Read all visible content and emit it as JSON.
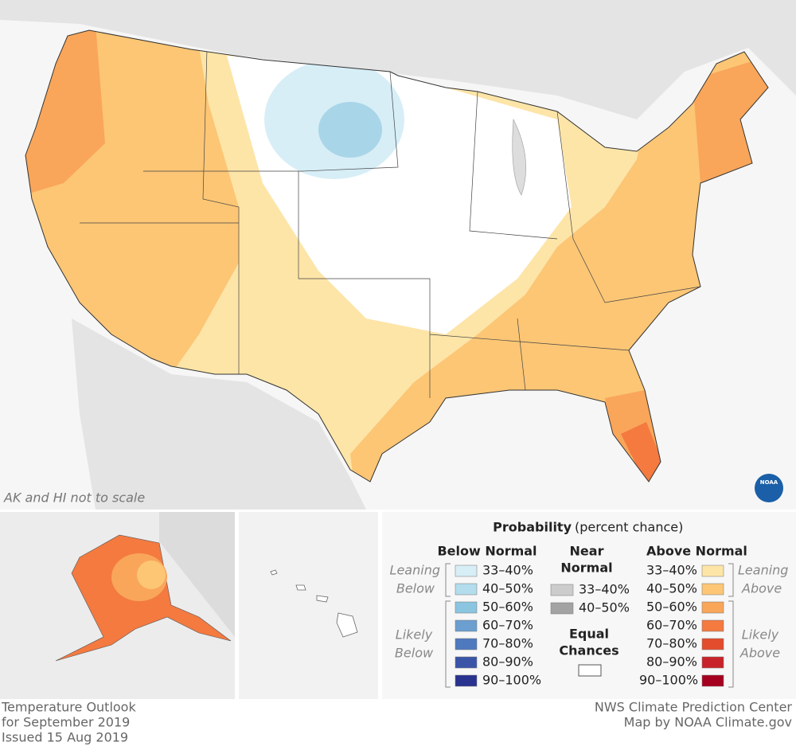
{
  "map": {
    "scale_note": "AK and HI not to scale",
    "logo": "NOAA"
  },
  "legend": {
    "title": "Probability",
    "subtitle": "(percent chance)",
    "below": {
      "heading": "Below Normal",
      "leaning": [
        "Leaning",
        "Below"
      ],
      "likely": [
        "Likely",
        "Below"
      ],
      "items": [
        {
          "label": "33–40%",
          "color": "#d7eef7"
        },
        {
          "label": "40–50%",
          "color": "#b3dcec"
        },
        {
          "label": "50–60%",
          "color": "#8cc5e0"
        },
        {
          "label": "60–70%",
          "color": "#6a9fd0"
        },
        {
          "label": "70–80%",
          "color": "#4f79bf"
        },
        {
          "label": "80–90%",
          "color": "#3a55a8"
        },
        {
          "label": "90–100%",
          "color": "#2a3290"
        }
      ]
    },
    "near": {
      "heading": [
        "Near",
        "Normal"
      ],
      "items": [
        {
          "label": "33–40%",
          "color": "#cccccc"
        },
        {
          "label": "40–50%",
          "color": "#a3a3a3"
        }
      ]
    },
    "equal": {
      "heading": [
        "Equal",
        "Chances"
      ],
      "color": "#ffffff"
    },
    "above": {
      "heading": "Above Normal",
      "leaning": [
        "Leaning",
        "Above"
      ],
      "likely": [
        "Likely",
        "Above"
      ],
      "items": [
        {
          "label": "33–40%",
          "color": "#fde5a8"
        },
        {
          "label": "40–50%",
          "color": "#fcc675"
        },
        {
          "label": "50–60%",
          "color": "#f9a65a"
        },
        {
          "label": "60–70%",
          "color": "#f47a40"
        },
        {
          "label": "70–80%",
          "color": "#e34c2c"
        },
        {
          "label": "80–90%",
          "color": "#c8232a"
        },
        {
          "label": "90–100%",
          "color": "#a5001f"
        }
      ]
    }
  },
  "footer": {
    "left": [
      "Temperature Outlook",
      "for September 2019",
      "Issued 15 Aug 2019"
    ],
    "right": [
      "NWS Climate Prediction Center",
      "Map by NOAA Climate.gov"
    ]
  }
}
